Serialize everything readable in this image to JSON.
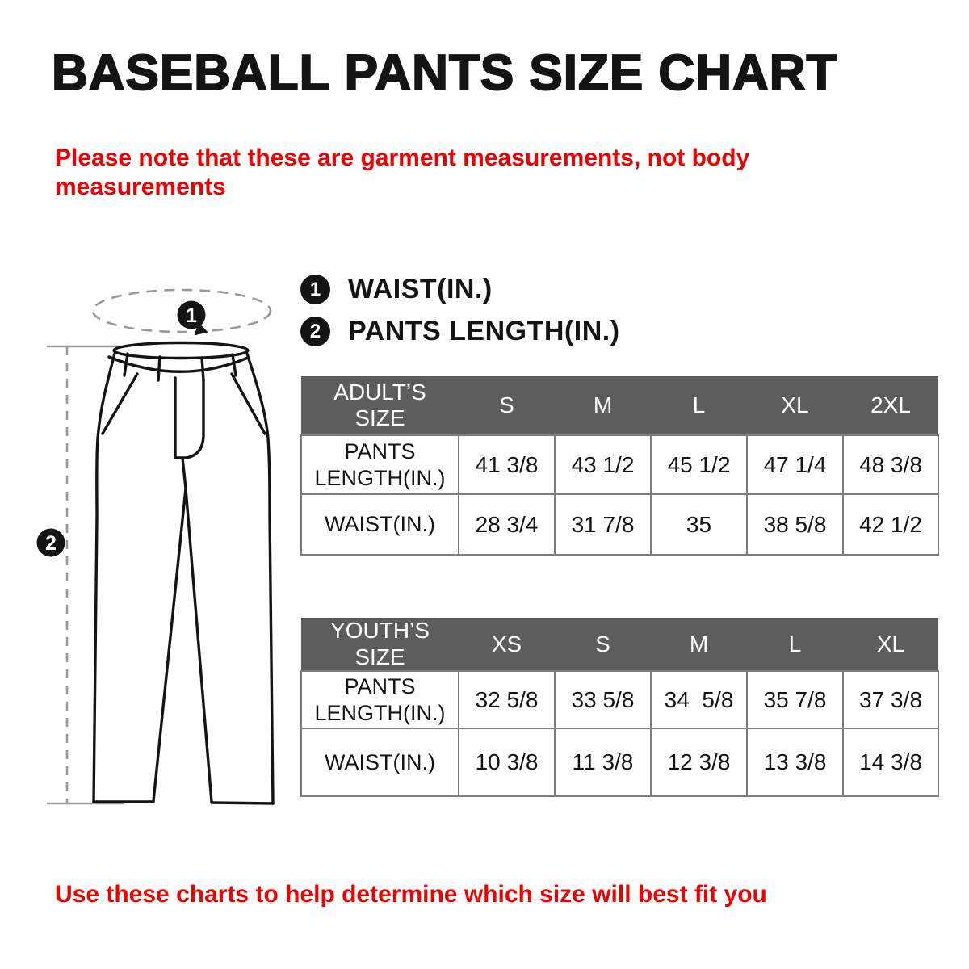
{
  "page": {
    "title": "BASEBALL PANTS SIZE CHART",
    "note_top": "Please note that these are garment measurements, not body measurements",
    "note_bottom": "Use these charts to help determine which size will best fit you"
  },
  "colors": {
    "red": "#ee0000",
    "ink": "#141414",
    "table_header_bg": "#5d5d5d",
    "table_border": "#7d7d7d",
    "guide_gray": "#9a9a9a"
  },
  "legend": {
    "items": [
      {
        "num": "1",
        "label": "WAIST(IN.)"
      },
      {
        "num": "2",
        "label": "PANTS LENGTH(IN.)"
      }
    ]
  },
  "diagram": {
    "markers": [
      {
        "num": "1",
        "meaning": "waist measurement"
      },
      {
        "num": "2",
        "meaning": "pants length measurement"
      }
    ]
  },
  "tables": [
    {
      "header_label": "ADULT’S SIZE",
      "columns": [
        "S",
        "M",
        "L",
        "XL",
        "2XL"
      ],
      "rows": [
        {
          "label": "PANTS LENGTH(IN.)",
          "values": [
            "41 3/8",
            "43 1/2",
            "45 1/2",
            "47 1/4",
            "48 3/8"
          ]
        },
        {
          "label": "WAIST(IN.)",
          "values": [
            "28 3/4",
            "31 7/8",
            "35",
            "38 5/8",
            "42 1/2"
          ]
        }
      ]
    },
    {
      "header_label": "YOUTH’S SIZE",
      "columns": [
        "XS",
        "S",
        "M",
        "L",
        "XL"
      ],
      "rows": [
        {
          "label": "PANTS LENGTH(IN.)",
          "values": [
            "32 5/8",
            "33 5/8",
            "34  5/8",
            "35 7/8",
            "37 3/8"
          ]
        },
        {
          "label": "WAIST(IN.)",
          "values": [
            "10 3/8",
            "11 3/8",
            "12 3/8",
            "13 3/8",
            "14 3/8"
          ]
        }
      ]
    }
  ]
}
